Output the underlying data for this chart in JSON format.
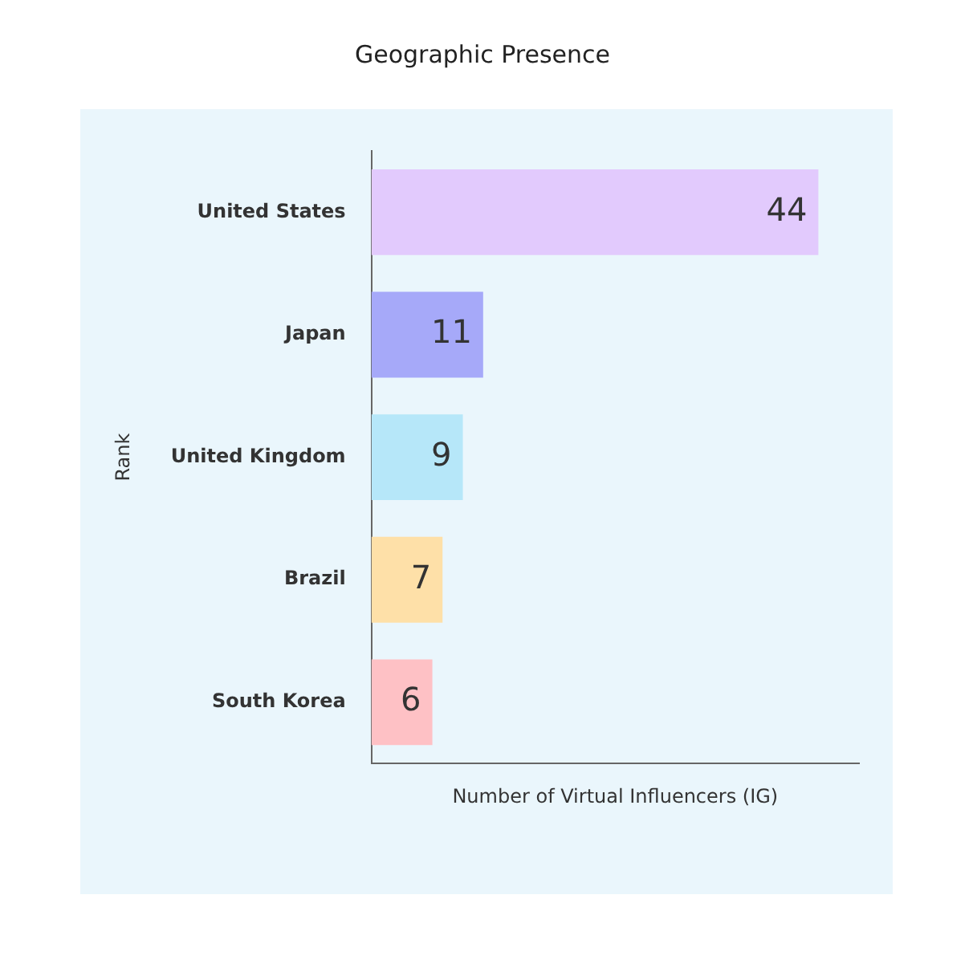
{
  "chart_data": {
    "type": "bar",
    "orientation": "horizontal",
    "title": "Geographic Presence",
    "xlabel": "Number of Virtual Influencers (IG)",
    "ylabel": "Rank",
    "categories": [
      "United States",
      "Japan",
      "United Kingdom",
      "Brazil",
      "South Korea"
    ],
    "values": [
      44,
      11,
      9,
      7,
      6
    ],
    "colors": [
      "#e2cafd",
      "#a6a9f9",
      "#b6e7f9",
      "#fee0a8",
      "#fec1c5"
    ],
    "xlim": [
      0,
      48
    ],
    "data_labels": true,
    "tick_labels": "y",
    "grid": false,
    "legend": false
  }
}
